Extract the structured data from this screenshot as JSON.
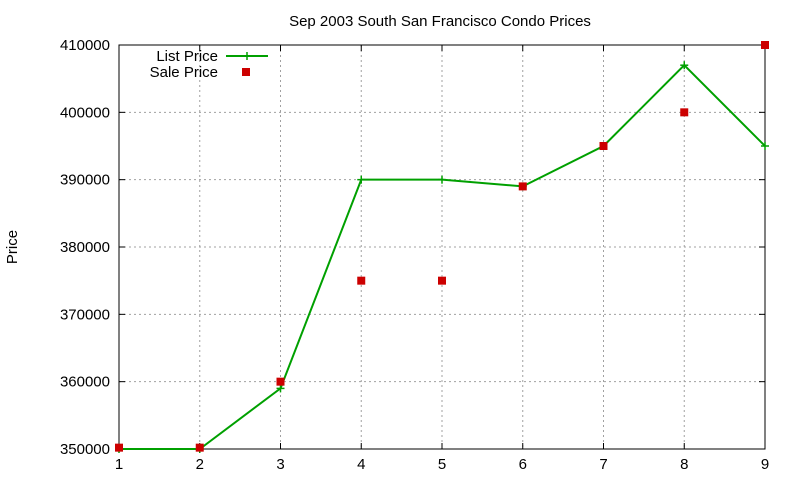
{
  "chart_data": {
    "type": "line",
    "title": "Sep 2003 South San Francisco Condo Prices",
    "xlabel": "",
    "ylabel": "Price",
    "xlim": [
      1,
      9
    ],
    "ylim": [
      350000,
      410000
    ],
    "x_ticks": [
      1,
      2,
      3,
      4,
      5,
      6,
      7,
      8,
      9
    ],
    "y_ticks": [
      350000,
      360000,
      370000,
      380000,
      390000,
      400000,
      410000
    ],
    "grid": true,
    "legend_position": "top-left",
    "series": [
      {
        "name": "List Price",
        "style": "line with plus markers",
        "color": "#00a000",
        "x": [
          1,
          2,
          3,
          4,
          5,
          6,
          7,
          8,
          9
        ],
        "y": [
          350000,
          350000,
          359000,
          390000,
          390000,
          389000,
          395000,
          407000,
          395000
        ]
      },
      {
        "name": "Sale Price",
        "style": "square markers",
        "color": "#cc0000",
        "x": [
          1,
          2,
          3,
          4,
          5,
          6,
          7,
          8,
          9
        ],
        "y": [
          350200,
          350200,
          360000,
          375000,
          375000,
          389000,
          395000,
          400000,
          410000
        ]
      }
    ]
  }
}
